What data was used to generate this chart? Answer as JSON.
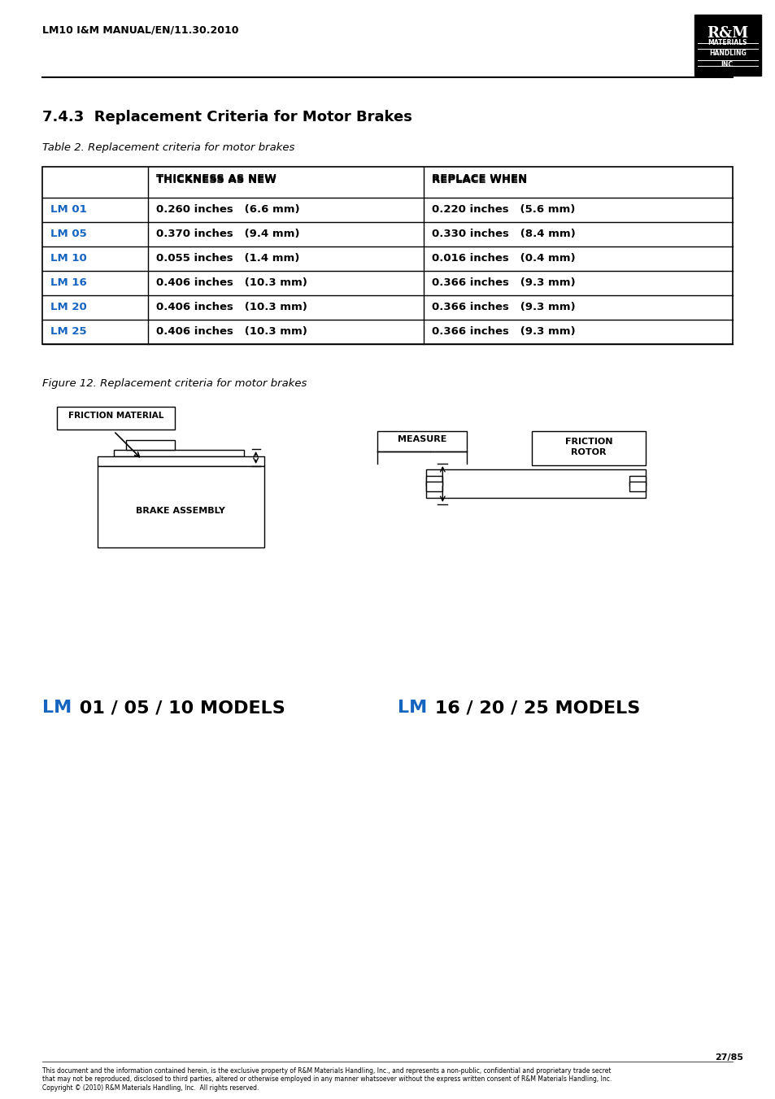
{
  "page_header": "LM10 I&M MANUAL/EN/11.30.2010",
  "section_title": "7.4.3  Replacement Criteria for Motor Brakes",
  "table_caption": "Table 2. Replacement criteria for motor brakes",
  "figure_caption": "Figure 12. Replacement criteria for motor brakes",
  "col_headers": [
    "",
    "THICKNESS AS NEW",
    "REPLACE WHEN"
  ],
  "rows": [
    [
      "LM 01",
      "0.260 inches   (6.6 mm)",
      "0.220 inches   (5.6 mm)"
    ],
    [
      "LM 05",
      "0.370 inches   (9.4 mm)",
      "0.330 inches   (8.4 mm)"
    ],
    [
      "LM 10",
      "0.055 inches   (1.4 mm)",
      "0.016 inches   (0.4 mm)"
    ],
    [
      "LM 16",
      "0.406 inches   (10.3 mm)",
      "0.366 inches   (9.3 mm)"
    ],
    [
      "LM 20",
      "0.406 inches   (10.3 mm)",
      "0.366 inches   (9.3 mm)"
    ],
    [
      "LM 25",
      "0.406 inches   (10.3 mm)",
      "0.366 inches   (9.3 mm)"
    ]
  ],
  "lm_color": "#1565C0",
  "label_left": "LM 01 / 05 / 10 MODELS",
  "label_right": "LM 16 / 20 / 25 MODELS",
  "footer_page": "27/85",
  "footer_text": "This document and the information contained herein, is the exclusive property of R&M Materials Handling, Inc., and represents a non-public, confidential and proprietary trade secret\nthat may not be reproduced, disclosed to third parties, altered or otherwise employed in any manner whatsoever without the express written consent of R&M Materials Handling, Inc.\nCopyright © (2010) R&M Materials Handling, Inc.  All rights reserved.",
  "background_color": "#ffffff"
}
